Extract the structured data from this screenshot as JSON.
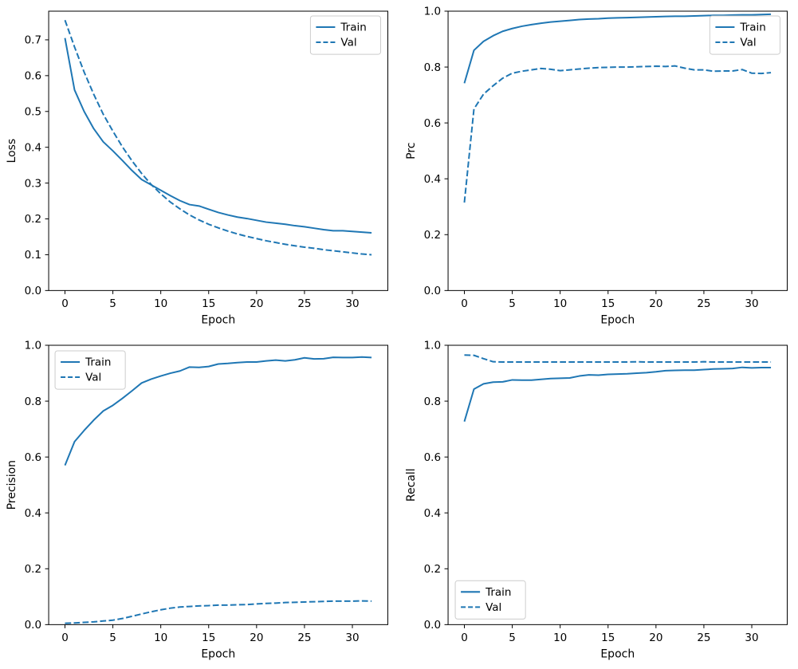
{
  "figure": {
    "background": "#ffffff",
    "line_color": "#1f77b4",
    "axis_color": "#000000",
    "legend_border_color": "#cccccc"
  },
  "chart_data": [
    {
      "id": "loss",
      "type": "line",
      "title": "",
      "xlabel": "Epoch",
      "ylabel": "Loss",
      "xlim": [
        -1.7,
        33.7
      ],
      "ylim": [
        0,
        0.78
      ],
      "xticks": [
        0,
        5,
        10,
        15,
        20,
        25,
        30
      ],
      "yticks": [
        0.0,
        0.1,
        0.2,
        0.3,
        0.4,
        0.5,
        0.6,
        0.7
      ],
      "ytick_decimals": 1,
      "grid": false,
      "legend_loc": "upper-right",
      "x": [
        0,
        1,
        2,
        3,
        4,
        5,
        6,
        7,
        8,
        9,
        10,
        11,
        12,
        13,
        14,
        15,
        16,
        17,
        18,
        19,
        20,
        21,
        22,
        23,
        24,
        25,
        26,
        27,
        28,
        29,
        30,
        31,
        32
      ],
      "series": [
        {
          "name": "Train",
          "style": "solid",
          "values": [
            0.705,
            0.56,
            0.5,
            0.452,
            0.415,
            0.39,
            0.363,
            0.335,
            0.31,
            0.295,
            0.28,
            0.265,
            0.251,
            0.24,
            0.236,
            0.227,
            0.218,
            0.211,
            0.205,
            0.201,
            0.196,
            0.191,
            0.188,
            0.185,
            0.181,
            0.178,
            0.174,
            0.17,
            0.167,
            0.167,
            0.165,
            0.163,
            0.161
          ]
        },
        {
          "name": "Val",
          "style": "dashed",
          "values": [
            0.755,
            0.68,
            0.61,
            0.548,
            0.492,
            0.445,
            0.401,
            0.362,
            0.327,
            0.296,
            0.27,
            0.247,
            0.228,
            0.211,
            0.197,
            0.185,
            0.175,
            0.166,
            0.158,
            0.151,
            0.145,
            0.139,
            0.134,
            0.129,
            0.125,
            0.121,
            0.118,
            0.114,
            0.111,
            0.108,
            0.105,
            0.102,
            0.1
          ]
        }
      ]
    },
    {
      "id": "prc",
      "type": "line",
      "title": "",
      "xlabel": "Epoch",
      "ylabel": "Prc",
      "xlim": [
        -1.7,
        33.7
      ],
      "ylim": [
        0,
        1.0
      ],
      "xticks": [
        0,
        5,
        10,
        15,
        20,
        25,
        30
      ],
      "yticks": [
        0.0,
        0.2,
        0.4,
        0.6,
        0.8,
        1.0
      ],
      "ytick_decimals": 1,
      "grid": false,
      "legend_loc": "upper-right",
      "x": [
        0,
        1,
        2,
        3,
        4,
        5,
        6,
        7,
        8,
        9,
        10,
        11,
        12,
        13,
        14,
        15,
        16,
        17,
        18,
        19,
        20,
        21,
        22,
        23,
        24,
        25,
        26,
        27,
        28,
        29,
        30,
        31,
        32
      ],
      "series": [
        {
          "name": "Train",
          "style": "solid",
          "values": [
            0.742,
            0.86,
            0.892,
            0.912,
            0.928,
            0.938,
            0.946,
            0.952,
            0.957,
            0.961,
            0.964,
            0.967,
            0.97,
            0.972,
            0.973,
            0.975,
            0.976,
            0.977,
            0.978,
            0.979,
            0.98,
            0.981,
            0.982,
            0.982,
            0.983,
            0.984,
            0.985,
            0.985,
            0.986,
            0.987,
            0.987,
            0.988,
            0.989
          ]
        },
        {
          "name": "Val",
          "style": "dashed",
          "values": [
            0.315,
            0.65,
            0.703,
            0.733,
            0.76,
            0.778,
            0.785,
            0.79,
            0.795,
            0.792,
            0.787,
            0.79,
            0.793,
            0.796,
            0.798,
            0.799,
            0.8,
            0.8,
            0.801,
            0.802,
            0.803,
            0.802,
            0.804,
            0.796,
            0.79,
            0.79,
            0.785,
            0.786,
            0.786,
            0.791,
            0.778,
            0.777,
            0.78
          ]
        }
      ]
    },
    {
      "id": "precision",
      "type": "line",
      "title": "",
      "xlabel": "Epoch",
      "ylabel": "Precision",
      "xlim": [
        -1.7,
        33.7
      ],
      "ylim": [
        0,
        1.0
      ],
      "xticks": [
        0,
        5,
        10,
        15,
        20,
        25,
        30
      ],
      "yticks": [
        0.0,
        0.2,
        0.4,
        0.6,
        0.8,
        1.0
      ],
      "ytick_decimals": 1,
      "grid": false,
      "legend_loc": "upper-left",
      "x": [
        0,
        1,
        2,
        3,
        4,
        5,
        6,
        7,
        8,
        9,
        10,
        11,
        12,
        13,
        14,
        15,
        16,
        17,
        18,
        19,
        20,
        21,
        22,
        23,
        24,
        25,
        26,
        27,
        28,
        29,
        30,
        31,
        32
      ],
      "series": [
        {
          "name": "Train",
          "style": "solid",
          "values": [
            0.57,
            0.655,
            0.695,
            0.732,
            0.765,
            0.785,
            0.81,
            0.837,
            0.865,
            0.879,
            0.89,
            0.9,
            0.908,
            0.922,
            0.921,
            0.924,
            0.933,
            0.935,
            0.938,
            0.94,
            0.94,
            0.944,
            0.947,
            0.944,
            0.948,
            0.955,
            0.951,
            0.952,
            0.957,
            0.956,
            0.956,
            0.958,
            0.956
          ]
        },
        {
          "name": "Val",
          "style": "dashed",
          "values": [
            0.005,
            0.006,
            0.008,
            0.01,
            0.013,
            0.016,
            0.022,
            0.03,
            0.038,
            0.046,
            0.053,
            0.059,
            0.063,
            0.065,
            0.067,
            0.068,
            0.07,
            0.07,
            0.071,
            0.072,
            0.074,
            0.076,
            0.077,
            0.079,
            0.08,
            0.081,
            0.082,
            0.083,
            0.084,
            0.084,
            0.084,
            0.085,
            0.084
          ]
        }
      ]
    },
    {
      "id": "recall",
      "type": "line",
      "title": "",
      "xlabel": "Epoch",
      "ylabel": "Recall",
      "xlim": [
        -1.7,
        33.7
      ],
      "ylim": [
        0,
        1.0
      ],
      "xticks": [
        0,
        5,
        10,
        15,
        20,
        25,
        30
      ],
      "yticks": [
        0.0,
        0.2,
        0.4,
        0.6,
        0.8,
        1.0
      ],
      "ytick_decimals": 1,
      "grid": false,
      "legend_loc": "lower-left",
      "x": [
        0,
        1,
        2,
        3,
        4,
        5,
        6,
        7,
        8,
        9,
        10,
        11,
        12,
        13,
        14,
        15,
        16,
        17,
        18,
        19,
        20,
        21,
        22,
        23,
        24,
        25,
        26,
        27,
        28,
        29,
        30,
        31,
        32
      ],
      "series": [
        {
          "name": "Train",
          "style": "solid",
          "values": [
            0.727,
            0.843,
            0.862,
            0.868,
            0.869,
            0.876,
            0.875,
            0.875,
            0.878,
            0.881,
            0.882,
            0.883,
            0.89,
            0.894,
            0.893,
            0.896,
            0.897,
            0.898,
            0.9,
            0.902,
            0.905,
            0.909,
            0.91,
            0.911,
            0.911,
            0.913,
            0.915,
            0.916,
            0.917,
            0.921,
            0.919,
            0.92,
            0.92
          ]
        },
        {
          "name": "Val",
          "style": "dashed",
          "values": [
            0.965,
            0.964,
            0.952,
            0.941,
            0.94,
            0.94,
            0.94,
            0.94,
            0.94,
            0.94,
            0.94,
            0.94,
            0.94,
            0.94,
            0.94,
            0.94,
            0.94,
            0.94,
            0.941,
            0.94,
            0.94,
            0.94,
            0.94,
            0.94,
            0.94,
            0.941,
            0.94,
            0.94,
            0.94,
            0.94,
            0.94,
            0.94,
            0.94
          ]
        }
      ]
    }
  ]
}
